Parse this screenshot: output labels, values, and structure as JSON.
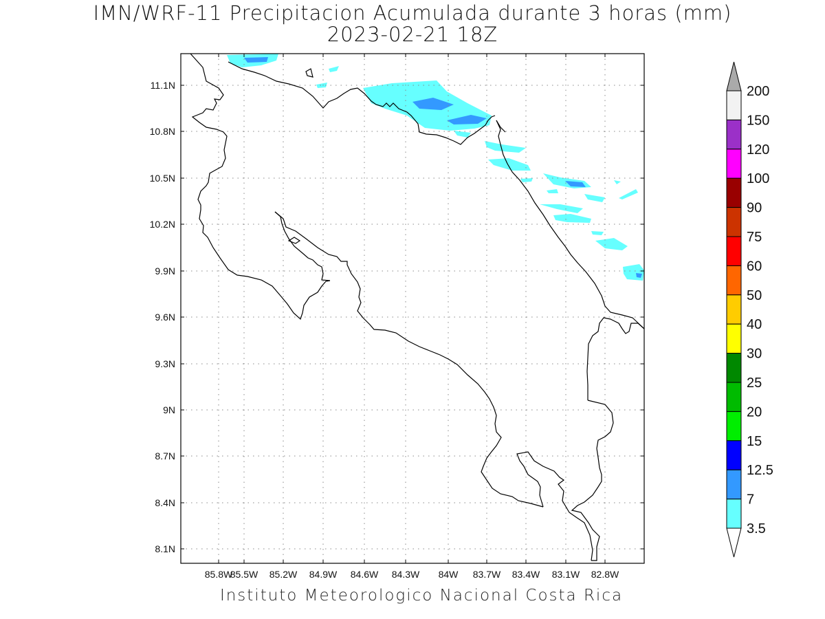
{
  "title": {
    "line1": "IMN/WRF-11 Precipitacion Acumulada durante 3 horas (mm)",
    "line2": "2023-02-21 18Z"
  },
  "footer": "Instituto Meteorologico Nacional Costa Rica",
  "map": {
    "lon_range": [
      -86.0,
      -82.6
    ],
    "lat_range": [
      7.99,
      11.34
    ],
    "x_ticks": [
      "85.8W",
      "85.5W",
      "85.2W",
      "84.9W",
      "84.6W",
      "84.3W",
      "84W",
      "83.7W",
      "83.4W",
      "83.1W",
      "82.8W"
    ],
    "y_ticks": [
      "11.1N",
      "10.8N",
      "10.5N",
      "10.2N",
      "9.9N",
      "9.6N",
      "9.3N",
      "9N",
      "8.7N",
      "8.4N",
      "8.1N"
    ],
    "grid": "dotted"
  },
  "colorbar": {
    "labels": [
      "200",
      "150",
      "120",
      "100",
      "90",
      "75",
      "60",
      "50",
      "40",
      "30",
      "25",
      "20",
      "15",
      "12.5",
      "7",
      "3.5"
    ],
    "colors": [
      "#f2f2f2",
      "#9b30c8",
      "#ff00ff",
      "#990000",
      "#cc3300",
      "#ff0000",
      "#ff6600",
      "#ffcc00",
      "#ffff00",
      "#008800",
      "#00bb00",
      "#00ee00",
      "#0000ff",
      "#3399ff",
      "#66ffff"
    ],
    "top_cap_color": "#aaaaaa",
    "bottom_cap_color": "#ffffff"
  },
  "precip_colors": {
    "light": "#66ffff",
    "medium": "#3399ff"
  }
}
